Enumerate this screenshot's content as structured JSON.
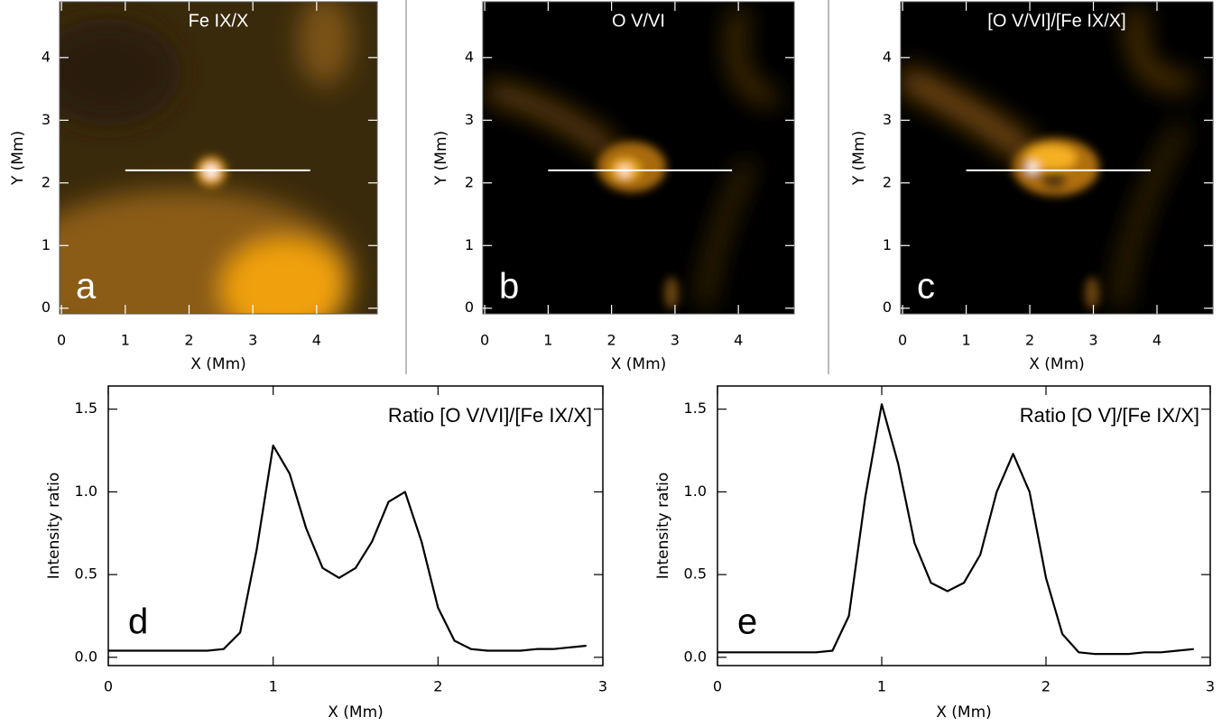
{
  "chart_data": [
    {
      "type": "image",
      "title": "Fe IX/X",
      "label": "a",
      "xlabel": "X (Mm)",
      "ylabel": "Y (Mm)",
      "xlim": [
        -0.03,
        4.95
      ],
      "ylim": [
        -0.09,
        4.89
      ],
      "xticks": [
        0,
        1,
        2,
        3,
        4
      ],
      "yticks": [
        0,
        1,
        2,
        3,
        4
      ],
      "cut_x": [
        1,
        3.9
      ],
      "cut_y": 2.2
    },
    {
      "type": "image",
      "title": "O V/VI",
      "label": "b",
      "xlabel": "X (Mm)",
      "ylabel": "Y (Mm)",
      "xlim": [
        -0.03,
        4.88
      ],
      "ylim": [
        -0.09,
        4.89
      ],
      "xticks": [
        0,
        1,
        2,
        3,
        4
      ],
      "yticks": [
        0,
        1,
        2,
        3,
        4
      ],
      "cut_x": [
        1,
        3.9
      ],
      "cut_y": 2.2
    },
    {
      "type": "image",
      "title": "[O V/VI]/[Fe IX/X]",
      "label": "c",
      "xlabel": "X (Mm)",
      "ylabel": "Y (Mm)",
      "xlim": [
        -0.03,
        4.88
      ],
      "ylim": [
        -0.09,
        4.89
      ],
      "xticks": [
        0,
        1,
        2,
        3,
        4
      ],
      "yticks": [
        0,
        1,
        2,
        3,
        4
      ],
      "cut_x": [
        1,
        3.9
      ],
      "cut_y": 2.2
    },
    {
      "type": "line",
      "annotation": "Ratio [O V/VI]/[Fe IX/X]",
      "label": "d",
      "xlabel": "X (Mm)",
      "ylabel": "Intensity ratio",
      "color": "#000000",
      "x": [
        0,
        0.1,
        0.2,
        0.3,
        0.4,
        0.5,
        0.6,
        0.7,
        0.8,
        0.9,
        1.0,
        1.1,
        1.2,
        1.3,
        1.4,
        1.5,
        1.6,
        1.7,
        1.8,
        1.9,
        2.0,
        2.1,
        2.2,
        2.3,
        2.4,
        2.5,
        2.6,
        2.7,
        2.8,
        2.9
      ],
      "values": [
        0.04,
        0.04,
        0.04,
        0.04,
        0.04,
        0.04,
        0.04,
        0.05,
        0.15,
        0.65,
        1.28,
        1.11,
        0.78,
        0.54,
        0.48,
        0.54,
        0.7,
        0.94,
        1.0,
        0.7,
        0.3,
        0.1,
        0.05,
        0.04,
        0.04,
        0.04,
        0.05,
        0.05,
        0.06,
        0.07
      ],
      "xlim": [
        0,
        3
      ],
      "ylim": [
        -0.05,
        1.64
      ],
      "xticks": [
        0,
        1,
        2,
        3
      ],
      "yticks": [
        {
          "value": 0,
          "label": "0.0"
        },
        0.5,
        {
          "value": 1,
          "label": "1.0"
        },
        1.5
      ]
    },
    {
      "type": "line",
      "annotation": "Ratio [O V]/[Fe IX/X]",
      "label": "e",
      "xlabel": "X (Mm)",
      "ylabel": "Intensity ratio",
      "color": "#000000",
      "x": [
        0,
        0.1,
        0.2,
        0.3,
        0.4,
        0.5,
        0.6,
        0.7,
        0.8,
        0.9,
        1.0,
        1.1,
        1.2,
        1.3,
        1.4,
        1.5,
        1.6,
        1.7,
        1.8,
        1.9,
        2.0,
        2.1,
        2.2,
        2.3,
        2.4,
        2.5,
        2.6,
        2.7,
        2.8,
        2.9
      ],
      "values": [
        0.03,
        0.03,
        0.03,
        0.03,
        0.03,
        0.03,
        0.03,
        0.04,
        0.25,
        0.97,
        1.53,
        1.17,
        0.69,
        0.45,
        0.4,
        0.45,
        0.62,
        1.0,
        1.23,
        1.0,
        0.48,
        0.14,
        0.03,
        0.02,
        0.02,
        0.02,
        0.03,
        0.03,
        0.04,
        0.05
      ],
      "xlim": [
        0,
        3
      ],
      "ylim": [
        -0.05,
        1.64
      ],
      "xticks": [
        0,
        1,
        2,
        3
      ],
      "yticks": [
        {
          "value": 0,
          "label": "0.0"
        },
        0.5,
        {
          "value": 1,
          "label": "1.0"
        },
        1.5
      ]
    }
  ]
}
